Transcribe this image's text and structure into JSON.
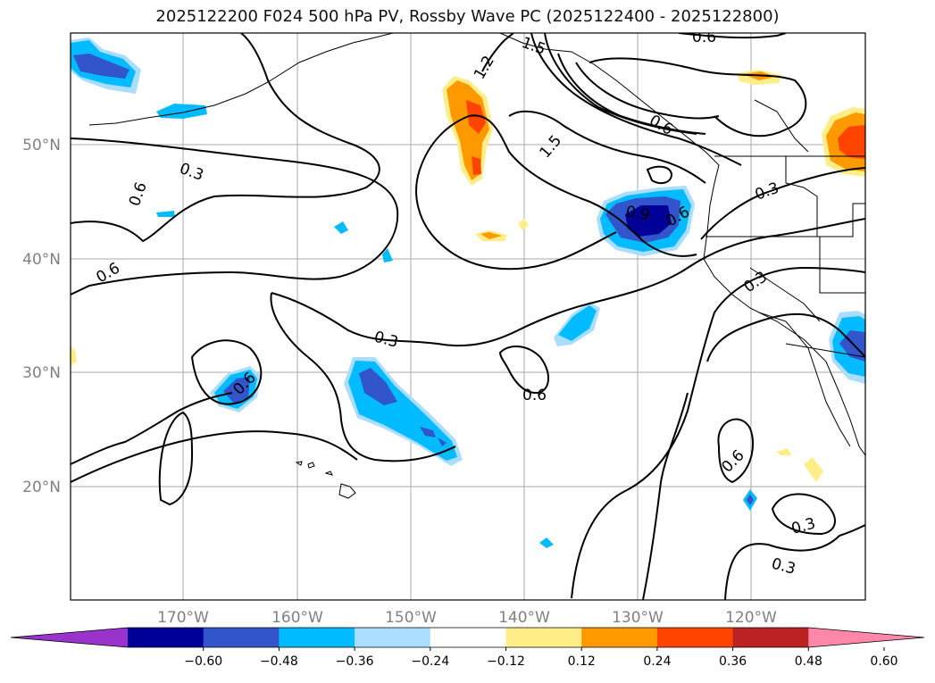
{
  "title": "2025122200 F024 500 hPa PV, Rossby Wave PC (2025122400 - 2025122800)",
  "lat_labels": [
    "50°N",
    "40°N",
    "30°N",
    "20°N"
  ],
  "lon_labels": [
    "170°W",
    "160°W",
    "150°W",
    "140°W",
    "130°W",
    "120°W"
  ],
  "contour_labels": [
    "0.3",
    "0.6",
    "0.6",
    "0.6",
    "0.3",
    "0.6",
    "0.6",
    "1.2",
    "1.5",
    "1.5",
    "0.6",
    "0.9",
    "0.6",
    "0.3",
    "0.3",
    "0.6",
    "0.3",
    "0.3",
    "0.6"
  ],
  "colorbar": {
    "ticks": [
      "−0.60",
      "−0.48",
      "−0.36",
      "−0.24",
      "−0.12",
      "0.12",
      "0.24",
      "0.36",
      "0.48",
      "0.60"
    ],
    "colors": [
      "#9933cc",
      "#000099",
      "#3355cc",
      "#00bbff",
      "#aaddff",
      "#ffffff",
      "#ffee88",
      "#ff9900",
      "#ff4400",
      "#bb2222",
      "#ff88aa"
    ]
  }
}
